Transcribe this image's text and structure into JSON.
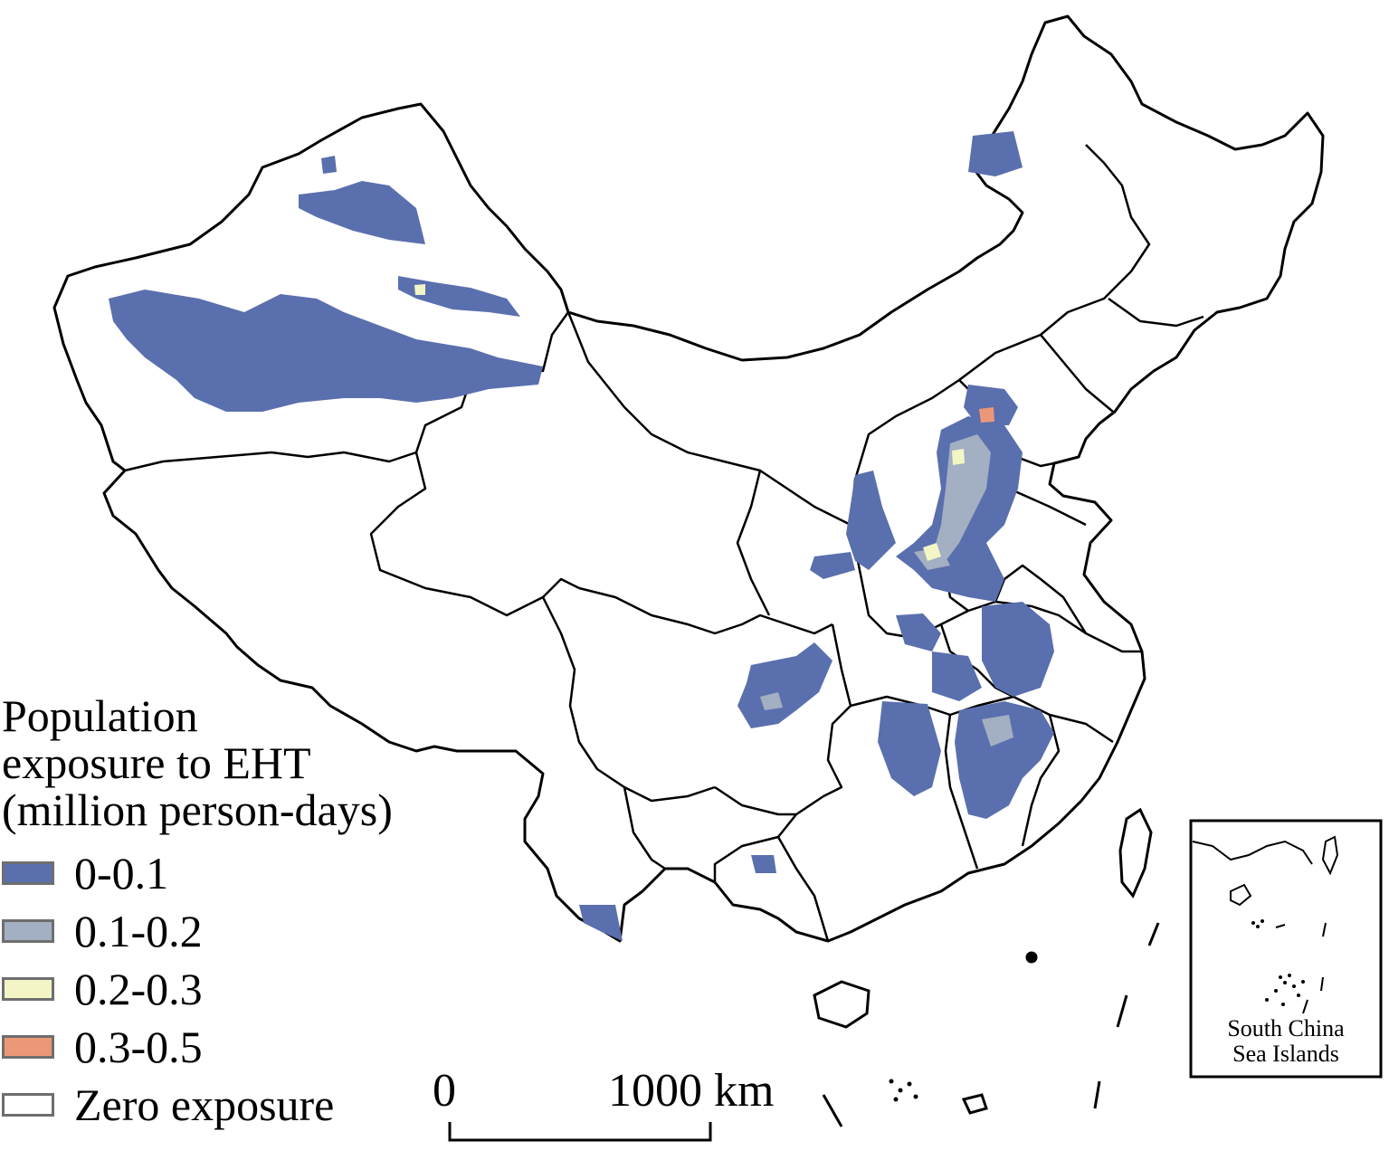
{
  "legend": {
    "title_lines": [
      "Population",
      "exposure to EHT",
      "(million person-days)"
    ],
    "items": [
      {
        "label": "0-0.1",
        "color": "#5a6fad"
      },
      {
        "label": "0.1-0.2",
        "color": "#a3afc2"
      },
      {
        "label": "0.2-0.3",
        "color": "#f4f5c6"
      },
      {
        "label": "0.3-0.5",
        "color": "#ec9777"
      },
      {
        "label": "Zero exposure",
        "color": "#ffffff"
      }
    ]
  },
  "scale_bar": {
    "start_label": "0",
    "end_label": "1000 km"
  },
  "inset": {
    "label_lines": [
      "South China",
      "Sea Islands"
    ]
  },
  "colors": {
    "boundary": "#000000",
    "background": "#ffffff"
  }
}
